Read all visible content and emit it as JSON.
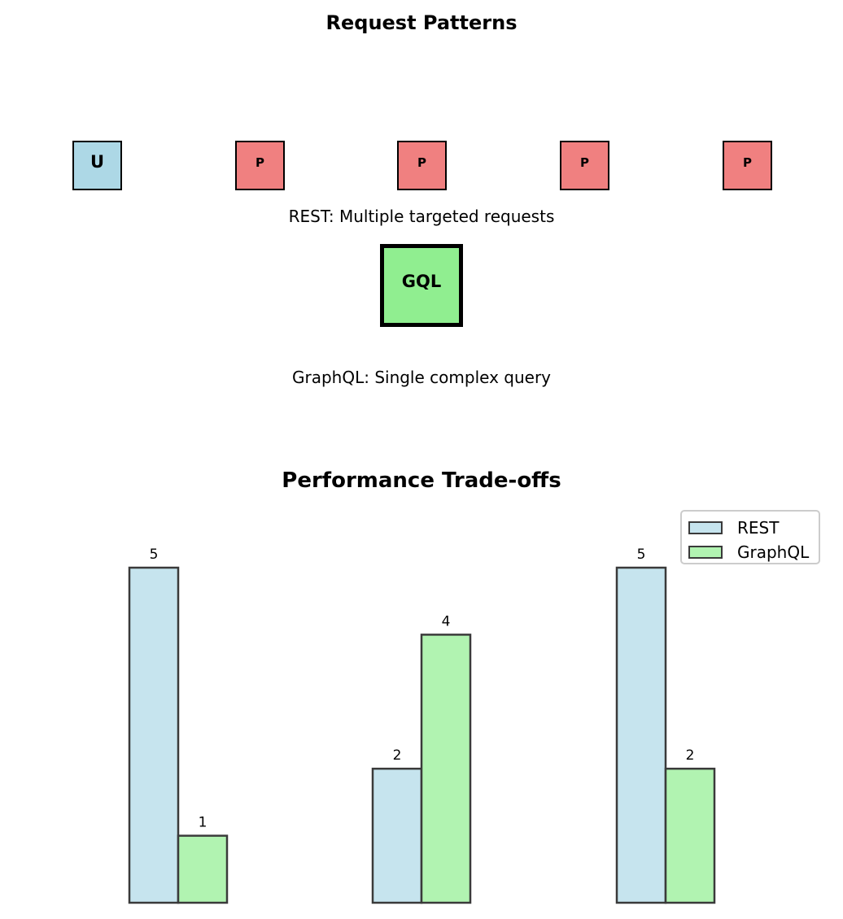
{
  "diagram": {
    "title": "Request Patterns",
    "user_box_label": "U",
    "post_boxes": [
      "P",
      "P",
      "P",
      "P"
    ],
    "rest_caption": "REST: Multiple targeted requests",
    "graphql_box_label": "GQL",
    "graphql_caption": "GraphQL: Single complex query",
    "colors": {
      "user_box": "#add8e6",
      "post_box": "#f08080",
      "graphql_box": "#90ee90"
    },
    "icons": [
      "square-box"
    ]
  },
  "chart_data": {
    "type": "bar",
    "title": "Performance Trade-offs",
    "categories": [
      "",
      "",
      ""
    ],
    "xlabel": "",
    "ylabel": "",
    "ylim": [
      0,
      5.5
    ],
    "grid": false,
    "legend": "top-right",
    "axes_visible": false,
    "series": [
      {
        "name": "REST",
        "values": [
          5,
          2,
          5
        ],
        "color": "#add8e6"
      },
      {
        "name": "GraphQL",
        "values": [
          1,
          4,
          2
        ],
        "color": "#90ee90"
      }
    ],
    "data_labels": true
  }
}
